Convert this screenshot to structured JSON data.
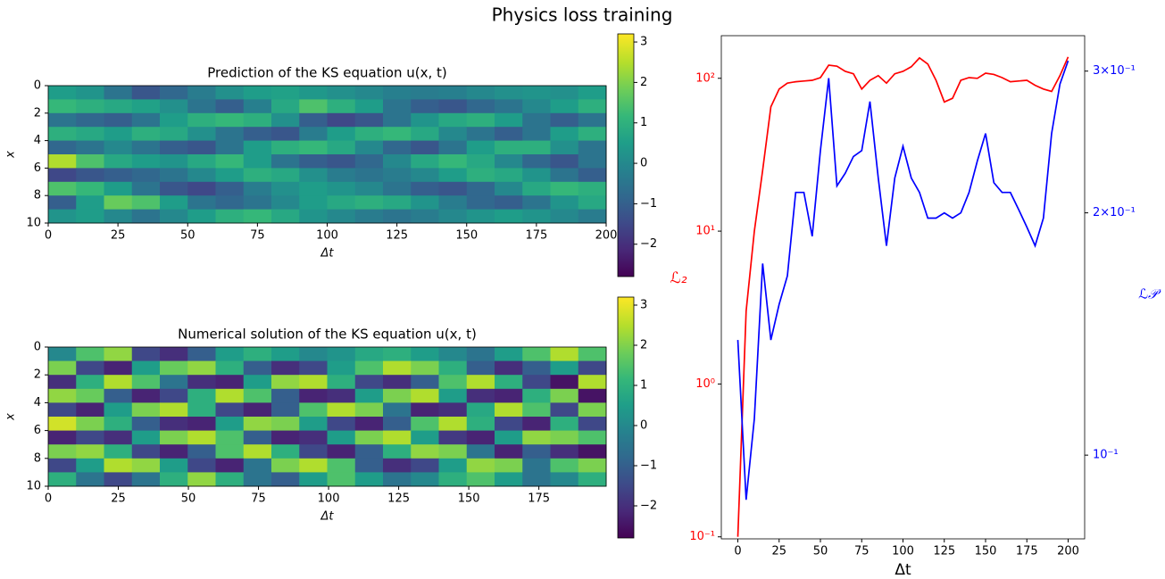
{
  "title": "Physics loss training",
  "chart_data": [
    {
      "type": "heatmap",
      "title": "Prediction of the KS equation u(x, t)",
      "xlabel": "Δt",
      "ylabel": "x",
      "colormap": "viridis",
      "xlim": [
        0,
        200
      ],
      "xticks": [
        0,
        25,
        50,
        75,
        100,
        125,
        150,
        175,
        200
      ],
      "ylim": [
        0,
        10
      ],
      "y_inverted": true,
      "yticks": [
        0,
        2,
        4,
        6,
        8,
        10
      ],
      "colorbar": {
        "lim": [
          -2.8,
          3.2
        ],
        "ticks": [
          {
            "value": -2,
            "label": "−2"
          },
          {
            "value": -1,
            "label": "−1"
          },
          0,
          1,
          2,
          3
        ]
      },
      "z": [
        [
          0.5,
          0.3,
          -0.5,
          -1.2,
          -0.8,
          -0.3,
          0.2,
          0.5,
          0.6,
          0.4,
          0.2,
          0,
          -0.2,
          -0.3,
          -0.2,
          0,
          0.2,
          0.3,
          0.2,
          0.5
        ],
        [
          1.2,
          1,
          0.8,
          0.6,
          0.2,
          -0.5,
          -1.0,
          -0.2,
          0.8,
          1.5,
          1.0,
          0.5,
          -0.5,
          -1,
          -1.2,
          -0.8,
          -0.5,
          0,
          0.5,
          1
        ],
        [
          -0.5,
          -0.8,
          -1.0,
          -0.5,
          0.5,
          1.0,
          1.2,
          1.0,
          0.2,
          -1.0,
          -1.5,
          -1.2,
          -0.5,
          0.3,
          0.8,
          1.0,
          0.5,
          -0.5,
          -1,
          -0.5
        ],
        [
          1.0,
          0.8,
          0.5,
          1.0,
          0.8,
          0.2,
          -0.5,
          -1.0,
          -1.2,
          -0.3,
          0.5,
          1.0,
          1.2,
          0.8,
          0,
          -0.5,
          -1.0,
          -0.5,
          0.5,
          1
        ],
        [
          -0.8,
          -0.5,
          0,
          -0.5,
          -1.0,
          -1.2,
          -0.5,
          0.5,
          1.0,
          1.2,
          0.8,
          0,
          -0.8,
          -1.2,
          -0.5,
          0.5,
          1.0,
          1.0,
          0.2,
          -0.5
        ],
        [
          2.5,
          1.5,
          0.8,
          0.5,
          0.3,
          0.8,
          1.2,
          0.5,
          -0.5,
          -1,
          -1.2,
          -0.8,
          0,
          0.8,
          1.2,
          0.8,
          0,
          -0.8,
          -1.2,
          -0.5
        ],
        [
          -1.5,
          -1.2,
          -1.0,
          -0.8,
          -0.5,
          0,
          0.5,
          1.0,
          0.8,
          0.2,
          -0.3,
          -0.5,
          -0.3,
          0,
          0.5,
          1.0,
          0.8,
          0.3,
          -0.5,
          -1
        ],
        [
          1.5,
          1.2,
          0.5,
          -0.5,
          -1.2,
          -1.5,
          -1.0,
          -0.3,
          0.2,
          0.5,
          0.3,
          0,
          -0.5,
          -1.0,
          -1.2,
          -0.8,
          0,
          0.8,
          1.2,
          1.0
        ],
        [
          -1.0,
          0.5,
          1.8,
          1.5,
          0.5,
          -0.5,
          -0.8,
          -0.5,
          0,
          0.5,
          0.8,
          1.0,
          0.8,
          0.3,
          -0.3,
          -0.8,
          -1.0,
          -0.5,
          0.3,
          0.8
        ],
        [
          0.3,
          0.5,
          0,
          -0.5,
          0,
          0.5,
          1.0,
          1.2,
          0.8,
          0.3,
          0,
          -0.3,
          -0.5,
          -0.3,
          0,
          0.3,
          0.5,
          0.3,
          0,
          -0.3
        ]
      ]
    },
    {
      "type": "heatmap",
      "title": "Numerical solution of the KS equation u(x, t)",
      "xlabel": "Δt",
      "ylabel": "x",
      "colormap": "viridis",
      "xlim": [
        0,
        199
      ],
      "xticks": [
        0,
        25,
        50,
        75,
        100,
        125,
        150,
        175
      ],
      "ylim": [
        0,
        10
      ],
      "y_inverted": true,
      "yticks": [
        0,
        2,
        4,
        6,
        8,
        10
      ],
      "colorbar": {
        "lim": [
          -2.8,
          3.2
        ],
        "ticks": [
          {
            "value": -2,
            "label": "−2"
          },
          {
            "value": -1,
            "label": "−1"
          },
          0,
          1,
          2,
          3
        ]
      },
      "z": [
        [
          0,
          1.5,
          2.2,
          -1.5,
          -2.0,
          -1.0,
          0.5,
          1.0,
          0.5,
          0,
          0.3,
          0.8,
          1.0,
          0.5,
          0,
          -0.5,
          0.5,
          1.5,
          2.5,
          1.5
        ],
        [
          2.0,
          -1.5,
          -2.2,
          0.5,
          1.8,
          2.2,
          1.0,
          -1.0,
          -2.0,
          -1.5,
          0.5,
          1.5,
          2.5,
          2.0,
          1.0,
          -1.0,
          -2.0,
          -1.0,
          0.5,
          -1.5
        ],
        [
          -2.0,
          1.0,
          2.5,
          1.5,
          -0.5,
          -2.0,
          -2.2,
          0.5,
          2.2,
          2.5,
          1.0,
          -1.5,
          -2.0,
          -1.0,
          1.5,
          2.5,
          1.0,
          -1.5,
          -2.5,
          2.5
        ],
        [
          2.2,
          1.8,
          -1.0,
          -2.2,
          -1.5,
          1.0,
          2.5,
          1.5,
          -1.0,
          -2.2,
          -2.0,
          0.5,
          2.0,
          2.5,
          0.5,
          -2.0,
          -2.2,
          1.0,
          2.0,
          -2.5
        ],
        [
          -1.5,
          -2.2,
          0.5,
          2.0,
          2.5,
          1.0,
          -1.5,
          -2.2,
          -1.0,
          1.5,
          2.5,
          2.0,
          -0.5,
          -2.2,
          -2.0,
          0.8,
          2.5,
          1.5,
          -1.5,
          2.0
        ],
        [
          2.8,
          2.0,
          1.0,
          -1.0,
          -2.0,
          -2.2,
          0.5,
          2.2,
          2.0,
          0.5,
          -1.5,
          -2.2,
          -1.0,
          1.5,
          2.5,
          1.0,
          -1.5,
          -2.2,
          1.0,
          -1.5
        ],
        [
          -2.2,
          -1.5,
          -2.0,
          0.5,
          2.0,
          2.5,
          1.5,
          -1.0,
          -2.2,
          -2.0,
          0.5,
          2.0,
          2.5,
          0.5,
          -1.8,
          -2.2,
          0.5,
          2.2,
          2.0,
          1.5
        ],
        [
          2.0,
          2.2,
          1.0,
          -1.5,
          -2.2,
          -1.0,
          1.5,
          2.5,
          1.0,
          -1.5,
          -2.2,
          -1.0,
          1.0,
          2.2,
          2.0,
          -0.5,
          -2.2,
          -1.0,
          -2.0,
          -2.5
        ],
        [
          -1.5,
          0.5,
          2.5,
          2.2,
          0.5,
          -1.5,
          -2.2,
          -0.5,
          2.0,
          2.5,
          1.5,
          -1.0,
          -2.0,
          -1.5,
          0.5,
          2.2,
          2.0,
          -0.5,
          1.5,
          2.0
        ],
        [
          1.0,
          -0.5,
          -1.5,
          -0.5,
          1.0,
          2.2,
          1.0,
          -0.5,
          -1.0,
          0.5,
          1.5,
          0.5,
          -0.5,
          0,
          1.0,
          1.5,
          0.5,
          -0.5,
          0,
          1.0
        ]
      ]
    },
    {
      "type": "line",
      "xlabel": "Δt",
      "ylabel": "ℒ₂",
      "y2label": "ℒ𝒫",
      "xlim": [
        -10,
        210
      ],
      "xticks": [
        0,
        25,
        50,
        75,
        100,
        125,
        150,
        175,
        200
      ],
      "ylog": true,
      "ylim": [
        0.097,
        190
      ],
      "yticks": [
        {
          "value": 0.1,
          "label": "10⁻¹"
        },
        {
          "value": 1,
          "label": "10⁰"
        },
        {
          "value": 10,
          "label": "10¹"
        },
        {
          "value": 100,
          "label": "10²"
        }
      ],
      "y2log": true,
      "y2lim": [
        0.0787,
        0.332
      ],
      "y2ticks": [
        {
          "value": 0.1,
          "label": "10⁻¹"
        },
        {
          "value": 0.2,
          "label": "2×10⁻¹"
        },
        {
          "value": 0.3,
          "label": "3×10⁻¹"
        }
      ],
      "x": [
        0,
        5,
        10,
        15,
        20,
        25,
        30,
        35,
        40,
        45,
        50,
        55,
        60,
        65,
        70,
        75,
        80,
        85,
        90,
        95,
        100,
        105,
        110,
        115,
        120,
        125,
        130,
        135,
        140,
        145,
        150,
        155,
        160,
        165,
        170,
        175,
        180,
        185,
        190,
        195,
        200
      ],
      "series": [
        {
          "color": "#ff0000",
          "values": [
            0.1,
            3,
            10,
            25,
            65,
            85,
            93,
            95,
            96,
            97,
            101,
            122,
            120,
            111,
            107,
            85,
            97,
            104,
            93,
            107,
            111,
            119,
            136,
            124,
            97,
            70,
            74,
            97,
            101,
            100,
            108,
            106,
            101,
            95,
            96,
            97,
            90,
            85,
            82,
            104,
            138
          ]
        },
        {
          "color": "#0000ff",
          "axis": "y2",
          "values": [
            0.139,
            0.088,
            0.111,
            0.173,
            0.139,
            0.154,
            0.167,
            0.212,
            0.212,
            0.187,
            0.239,
            0.294,
            0.216,
            0.224,
            0.235,
            0.239,
            0.275,
            0.221,
            0.182,
            0.221,
            0.242,
            0.221,
            0.212,
            0.197,
            0.197,
            0.2,
            0.197,
            0.2,
            0.212,
            0.232,
            0.251,
            0.218,
            0.212,
            0.212,
            0.202,
            0.192,
            0.182,
            0.197,
            0.251,
            0.289,
            0.309
          ]
        }
      ]
    }
  ]
}
